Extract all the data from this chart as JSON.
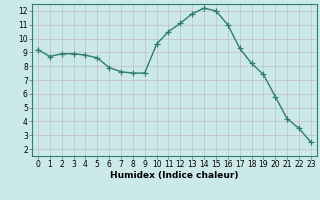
{
  "x": [
    0,
    1,
    2,
    3,
    4,
    5,
    6,
    7,
    8,
    9,
    10,
    11,
    12,
    13,
    14,
    15,
    16,
    17,
    18,
    19,
    20,
    21,
    22,
    23
  ],
  "y": [
    9.2,
    8.7,
    8.9,
    8.9,
    8.8,
    8.6,
    7.9,
    7.6,
    7.5,
    7.5,
    9.6,
    10.5,
    11.1,
    11.8,
    12.2,
    12.0,
    11.0,
    9.3,
    8.2,
    7.4,
    5.8,
    4.2,
    3.5,
    2.5
  ],
  "line_color": "#2e7d6e",
  "marker": "+",
  "marker_size": 4,
  "background_color": "#cce9e9",
  "grid_color": "#c0b0c8",
  "xlabel": "Humidex (Indice chaleur)",
  "xlim": [
    -0.5,
    23.5
  ],
  "ylim": [
    1.5,
    12.5
  ],
  "yticks": [
    2,
    3,
    4,
    5,
    6,
    7,
    8,
    9,
    10,
    11,
    12
  ],
  "xticks": [
    0,
    1,
    2,
    3,
    4,
    5,
    6,
    7,
    8,
    9,
    10,
    11,
    12,
    13,
    14,
    15,
    16,
    17,
    18,
    19,
    20,
    21,
    22,
    23
  ],
  "tick_fontsize": 5.5,
  "xlabel_fontsize": 6.5,
  "axis_color": "#2e7d6e",
  "spine_color": "#2e7d6e"
}
